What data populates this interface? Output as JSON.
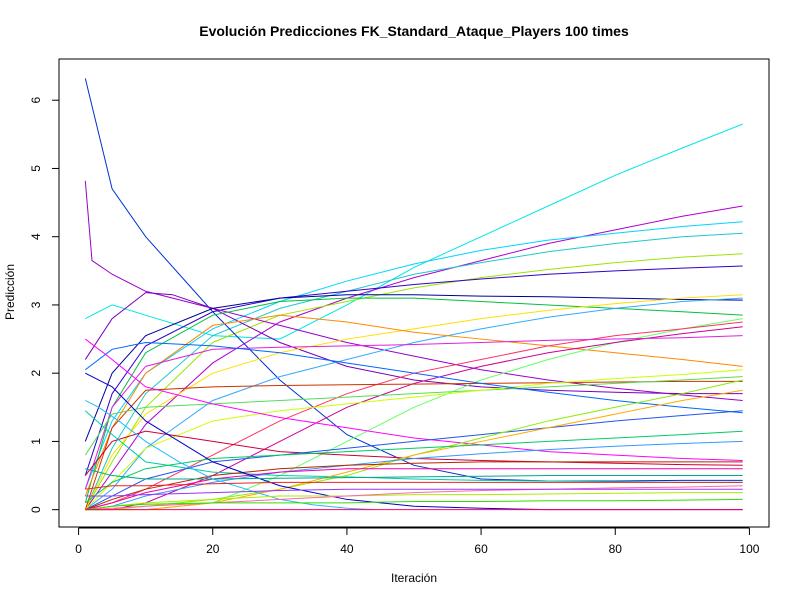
{
  "chart_data": {
    "type": "line",
    "title": "Evolución Predicciones FK_Standard_Ataque_Players 100 times",
    "xlabel": "Iteración",
    "ylabel": "Predicción",
    "xlim": [
      1,
      99
    ],
    "ylim": [
      0,
      6.35
    ],
    "xticks": [
      0,
      20,
      40,
      60,
      80,
      100
    ],
    "yticks": [
      0,
      1,
      2,
      3,
      4,
      5,
      6
    ],
    "grid": false,
    "legend": "none",
    "series": [
      {
        "color": "#00E5E5",
        "x": [
          1,
          5,
          10,
          20,
          30,
          40,
          50,
          60,
          70,
          80,
          90,
          99
        ],
        "y": [
          2.8,
          3.0,
          2.85,
          2.55,
          2.5,
          3.0,
          3.55,
          4.0,
          4.45,
          4.9,
          5.3,
          5.65
        ]
      },
      {
        "color": "#B000D0",
        "x": [
          1,
          5,
          10,
          20,
          30,
          40,
          50,
          60,
          70,
          80,
          90,
          99
        ],
        "y": [
          0.0,
          0.55,
          1.25,
          2.15,
          2.75,
          3.1,
          3.4,
          3.65,
          3.9,
          4.1,
          4.3,
          4.45
        ]
      },
      {
        "color": "#00D5FF",
        "x": [
          1,
          5,
          10,
          20,
          30,
          40,
          50,
          60,
          70,
          80,
          90,
          99
        ],
        "y": [
          0.3,
          1.3,
          2.0,
          2.65,
          3.05,
          3.35,
          3.6,
          3.8,
          3.95,
          4.05,
          4.15,
          4.22
        ]
      },
      {
        "color": "#20C8C8",
        "x": [
          1,
          5,
          10,
          20,
          30,
          40,
          50,
          60,
          70,
          80,
          90,
          99
        ],
        "y": [
          0.0,
          0.9,
          1.7,
          2.55,
          2.95,
          3.2,
          3.45,
          3.62,
          3.78,
          3.9,
          4.0,
          4.05
        ]
      },
      {
        "color": "#99E600",
        "x": [
          1,
          5,
          10,
          20,
          30,
          40,
          50,
          60,
          70,
          80,
          90,
          99
        ],
        "y": [
          0.0,
          0.7,
          1.5,
          2.45,
          2.85,
          3.05,
          3.25,
          3.4,
          3.52,
          3.62,
          3.7,
          3.75
        ]
      },
      {
        "color": "#3300CC",
        "x": [
          1,
          5,
          10,
          20,
          30,
          40,
          50,
          60,
          70,
          80,
          90,
          99
        ],
        "y": [
          0.5,
          1.7,
          2.4,
          2.9,
          3.1,
          3.2,
          3.3,
          3.38,
          3.45,
          3.5,
          3.54,
          3.57
        ]
      },
      {
        "color": "#0033CC",
        "x": [
          1,
          5,
          10,
          20,
          30,
          40,
          50,
          60,
          70,
          80,
          90,
          99
        ],
        "y": [
          6.32,
          4.7,
          4.0,
          2.9,
          1.9,
          1.1,
          0.65,
          0.45,
          0.42,
          0.42,
          0.43,
          0.43
        ]
      },
      {
        "color": "#9900CC",
        "x": [
          1,
          2,
          5,
          10,
          20,
          30,
          40,
          50,
          60,
          70,
          80,
          90,
          99
        ],
        "y": [
          4.82,
          3.65,
          3.45,
          3.2,
          2.95,
          2.7,
          2.45,
          2.25,
          2.05,
          1.9,
          1.78,
          1.68,
          1.6
        ]
      },
      {
        "color": "#7700BB",
        "x": [
          1,
          5,
          10,
          14,
          20,
          25,
          30,
          40,
          50,
          60,
          70,
          80,
          90,
          99
        ],
        "y": [
          2.2,
          2.8,
          3.18,
          3.15,
          2.95,
          2.7,
          2.45,
          2.1,
          1.9,
          1.8,
          1.75,
          1.72,
          1.7,
          1.7
        ]
      },
      {
        "color": "#00C040",
        "x": [
          1,
          5,
          10,
          20,
          30,
          40,
          50,
          60,
          70,
          80,
          90,
          99
        ],
        "y": [
          0.1,
          1.5,
          2.3,
          2.85,
          3.05,
          3.1,
          3.1,
          3.05,
          3.0,
          2.95,
          2.9,
          2.85
        ]
      },
      {
        "color": "#000099",
        "x": [
          1,
          5,
          10,
          20,
          30,
          40,
          50,
          60,
          70,
          80,
          90,
          99
        ],
        "y": [
          1.0,
          2.0,
          2.55,
          2.95,
          3.1,
          3.15,
          3.15,
          3.13,
          3.12,
          3.1,
          3.08,
          3.07
        ]
      },
      {
        "color": "#FFE000",
        "x": [
          1,
          5,
          10,
          20,
          30,
          40,
          50,
          60,
          70,
          80,
          90,
          99
        ],
        "y": [
          0.0,
          0.8,
          1.4,
          2.0,
          2.3,
          2.5,
          2.65,
          2.8,
          2.92,
          3.02,
          3.1,
          3.15
        ]
      },
      {
        "color": "#33AAFF",
        "x": [
          1,
          5,
          10,
          20,
          30,
          40,
          50,
          60,
          70,
          80,
          90,
          99
        ],
        "y": [
          0.0,
          0.3,
          0.9,
          1.6,
          1.95,
          2.2,
          2.45,
          2.65,
          2.82,
          2.95,
          3.05,
          3.1
        ]
      },
      {
        "color": "#FF8800",
        "x": [
          1,
          5,
          10,
          20,
          30,
          40,
          50,
          60,
          70,
          80,
          90,
          99
        ],
        "y": [
          0.2,
          1.2,
          2.0,
          2.7,
          2.85,
          2.75,
          2.6,
          2.5,
          2.4,
          2.3,
          2.2,
          2.1
        ]
      },
      {
        "color": "#66FF66",
        "x": [
          1,
          5,
          10,
          20,
          30,
          40,
          50,
          60,
          70,
          80,
          90,
          99
        ],
        "y": [
          0.0,
          0.0,
          0.0,
          0.1,
          0.5,
          1.0,
          1.5,
          1.9,
          2.2,
          2.45,
          2.65,
          2.8
        ]
      },
      {
        "color": "#FF3366",
        "x": [
          1,
          5,
          10,
          20,
          30,
          40,
          50,
          60,
          70,
          80,
          90,
          99
        ],
        "y": [
          0.0,
          0.1,
          0.3,
          0.8,
          1.3,
          1.7,
          2.0,
          2.2,
          2.4,
          2.55,
          2.65,
          2.75
        ]
      },
      {
        "color": "#CC0099",
        "x": [
          1,
          5,
          10,
          20,
          30,
          40,
          50,
          60,
          70,
          80,
          90,
          99
        ],
        "y": [
          0.0,
          0.0,
          0.1,
          0.5,
          1.0,
          1.5,
          1.85,
          2.1,
          2.3,
          2.45,
          2.58,
          2.68
        ]
      },
      {
        "color": "#E020E0",
        "x": [
          1,
          5,
          10,
          20,
          30,
          40,
          50,
          60,
          70,
          80,
          90,
          99
        ],
        "y": [
          0.3,
          1.5,
          2.1,
          2.35,
          2.38,
          2.4,
          2.42,
          2.45,
          2.48,
          2.5,
          2.52,
          2.55
        ]
      },
      {
        "color": "#CC3300",
        "x": [
          1,
          5,
          10,
          20,
          30,
          40,
          50,
          60,
          70,
          80,
          90,
          99
        ],
        "y": [
          0.0,
          1.2,
          1.75,
          1.8,
          1.82,
          1.83,
          1.84,
          1.85,
          1.86,
          1.87,
          1.88,
          1.88
        ]
      },
      {
        "color": "#55DD55",
        "x": [
          1,
          5,
          10,
          20,
          30,
          40,
          50,
          60,
          70,
          80,
          90,
          99
        ],
        "y": [
          0.8,
          1.4,
          1.5,
          1.55,
          1.6,
          1.65,
          1.7,
          1.75,
          1.8,
          1.85,
          1.9,
          1.95
        ]
      },
      {
        "color": "#CCFF00",
        "x": [
          1,
          5,
          10,
          20,
          30,
          40,
          50,
          60,
          70,
          80,
          90,
          99
        ],
        "y": [
          0.0,
          0.4,
          0.9,
          1.3,
          1.45,
          1.55,
          1.65,
          1.75,
          1.85,
          1.92,
          1.98,
          2.05
        ]
      },
      {
        "color": "#0066FF",
        "x": [
          1,
          5,
          10,
          20,
          30,
          40,
          50,
          60,
          70,
          80,
          90,
          99
        ],
        "y": [
          2.05,
          2.35,
          2.45,
          2.4,
          2.3,
          2.15,
          2.0,
          1.85,
          1.72,
          1.6,
          1.5,
          1.42
        ]
      },
      {
        "color": "#FF00FF",
        "x": [
          1,
          5,
          10,
          20,
          30,
          40,
          50,
          60,
          70,
          80,
          90,
          99
        ],
        "y": [
          2.5,
          2.2,
          1.8,
          1.55,
          1.35,
          1.2,
          1.05,
          0.95,
          0.85,
          0.8,
          0.75,
          0.72
        ]
      },
      {
        "color": "#CC0033",
        "x": [
          1,
          5,
          10,
          20,
          30,
          40,
          50,
          60,
          70,
          80,
          90,
          99
        ],
        "y": [
          0.5,
          1.0,
          1.15,
          1.0,
          0.85,
          0.8,
          0.75,
          0.72,
          0.7,
          0.68,
          0.66,
          0.65
        ]
      },
      {
        "color": "#00CCAA",
        "x": [
          1,
          5,
          10,
          20,
          30,
          40,
          50,
          60,
          70,
          80,
          90,
          99
        ],
        "y": [
          1.45,
          1.1,
          0.7,
          0.55,
          0.5,
          0.48,
          0.45,
          0.43,
          0.42,
          0.41,
          0.4,
          0.4
        ]
      },
      {
        "color": "#2255EE",
        "x": [
          1,
          5,
          10,
          20,
          30,
          40,
          50,
          60,
          70,
          80,
          90,
          99
        ],
        "y": [
          0.0,
          0.2,
          0.45,
          0.7,
          0.8,
          0.9,
          1.0,
          1.1,
          1.2,
          1.3,
          1.38,
          1.45
        ]
      },
      {
        "color": "#88EE00",
        "x": [
          1,
          5,
          10,
          20,
          30,
          40,
          50,
          60,
          70,
          80,
          90,
          99
        ],
        "y": [
          0.0,
          0.0,
          0.05,
          0.15,
          0.3,
          0.5,
          0.8,
          1.05,
          1.3,
          1.5,
          1.7,
          1.9
        ]
      },
      {
        "color": "#FFAA00",
        "x": [
          1,
          5,
          10,
          20,
          30,
          40,
          50,
          60,
          70,
          80,
          90,
          99
        ],
        "y": [
          0.0,
          0.0,
          0.0,
          0.1,
          0.3,
          0.55,
          0.8,
          1.0,
          1.2,
          1.4,
          1.6,
          1.75
        ]
      },
      {
        "color": "#00CC66",
        "x": [
          1,
          5,
          10,
          20,
          30,
          40,
          50,
          60,
          70,
          80,
          90,
          99
        ],
        "y": [
          0.1,
          0.4,
          0.6,
          0.75,
          0.8,
          0.85,
          0.9,
          0.95,
          1.0,
          1.05,
          1.1,
          1.15
        ]
      },
      {
        "color": "#3399FF",
        "x": [
          1,
          5,
          10,
          20,
          30,
          40,
          50,
          60,
          70,
          80,
          90,
          99
        ],
        "y": [
          0.0,
          0.05,
          0.2,
          0.4,
          0.55,
          0.65,
          0.75,
          0.82,
          0.88,
          0.93,
          0.97,
          1.0
        ]
      },
      {
        "color": "#EE00AA",
        "x": [
          1,
          5,
          10,
          20,
          30,
          40,
          50,
          60,
          70,
          80,
          90,
          99
        ],
        "y": [
          0.0,
          0.1,
          0.25,
          0.45,
          0.55,
          0.6,
          0.6,
          0.6,
          0.6,
          0.6,
          0.6,
          0.6
        ]
      },
      {
        "color": "#BB2200",
        "x": [
          1,
          5,
          10,
          20,
          30,
          40,
          50,
          60,
          70,
          80,
          90,
          99
        ],
        "y": [
          0.0,
          0.15,
          0.3,
          0.5,
          0.6,
          0.65,
          0.68,
          0.7,
          0.7,
          0.7,
          0.7,
          0.7
        ]
      },
      {
        "color": "#0000CC",
        "x": [
          1,
          5,
          10,
          20,
          30,
          40,
          50,
          60,
          70,
          80,
          90,
          99
        ],
        "y": [
          2.0,
          1.8,
          1.3,
          0.7,
          0.35,
          0.15,
          0.05,
          0.02,
          0.0,
          0.0,
          0.0,
          0.0
        ]
      },
      {
        "color": "#22BBFF",
        "x": [
          1,
          3,
          6,
          10,
          15,
          20,
          25,
          30,
          35,
          40,
          44
        ],
        "y": [
          1.6,
          1.5,
          1.3,
          1.0,
          0.7,
          0.45,
          0.3,
          0.15,
          0.07,
          0.02,
          0.0
        ]
      },
      {
        "color": "#AAEE00",
        "x": [
          1,
          5,
          10,
          20,
          30,
          40,
          50,
          60,
          70,
          80,
          90,
          99
        ],
        "y": [
          0.0,
          0.05,
          0.1,
          0.15,
          0.2,
          0.2,
          0.22,
          0.22,
          0.23,
          0.24,
          0.25,
          0.25
        ]
      },
      {
        "color": "#FF66AA",
        "x": [
          1,
          5,
          10,
          20,
          30,
          40,
          50,
          60,
          70,
          80,
          90,
          99
        ],
        "y": [
          0.0,
          0.02,
          0.05,
          0.1,
          0.15,
          0.2,
          0.25,
          0.28,
          0.3,
          0.32,
          0.33,
          0.35
        ]
      },
      {
        "color": "#EE2222",
        "x": [
          1,
          5,
          10,
          20,
          30,
          40,
          50,
          60,
          70,
          80,
          90,
          99
        ],
        "y": [
          0.3,
          0.35,
          0.35,
          0.38,
          0.4,
          0.4,
          0.4,
          0.4,
          0.4,
          0.4,
          0.4,
          0.4
        ]
      },
      {
        "color": "#33DD00",
        "x": [
          1,
          5,
          10,
          20,
          30,
          40,
          50,
          60,
          70,
          80,
          90,
          99
        ],
        "y": [
          0.0,
          0.05,
          0.08,
          0.1,
          0.1,
          0.1,
          0.12,
          0.12,
          0.13,
          0.13,
          0.14,
          0.15
        ]
      },
      {
        "color": "#FF0066",
        "x": [
          1,
          5,
          10,
          20,
          30,
          40,
          50,
          60,
          70,
          80,
          90,
          99
        ],
        "y": [
          0.0,
          0.0,
          0.0,
          0.0,
          0.0,
          0.0,
          0.0,
          0.0,
          0.0,
          0.0,
          0.0,
          0.0
        ]
      },
      {
        "color": "#00AA88",
        "x": [
          1,
          5,
          10,
          20,
          30,
          40,
          50,
          60,
          70,
          80,
          90,
          99
        ],
        "y": [
          0.6,
          0.5,
          0.45,
          0.45,
          0.46,
          0.47,
          0.48,
          0.49,
          0.5,
          0.5,
          0.5,
          0.5
        ]
      },
      {
        "color": "#9933FF",
        "x": [
          1,
          5,
          10,
          20,
          30,
          40,
          50,
          60,
          70,
          80,
          90,
          99
        ],
        "y": [
          0.2,
          0.2,
          0.22,
          0.25,
          0.28,
          0.3,
          0.3,
          0.3,
          0.3,
          0.3,
          0.3,
          0.3
        ]
      }
    ]
  }
}
